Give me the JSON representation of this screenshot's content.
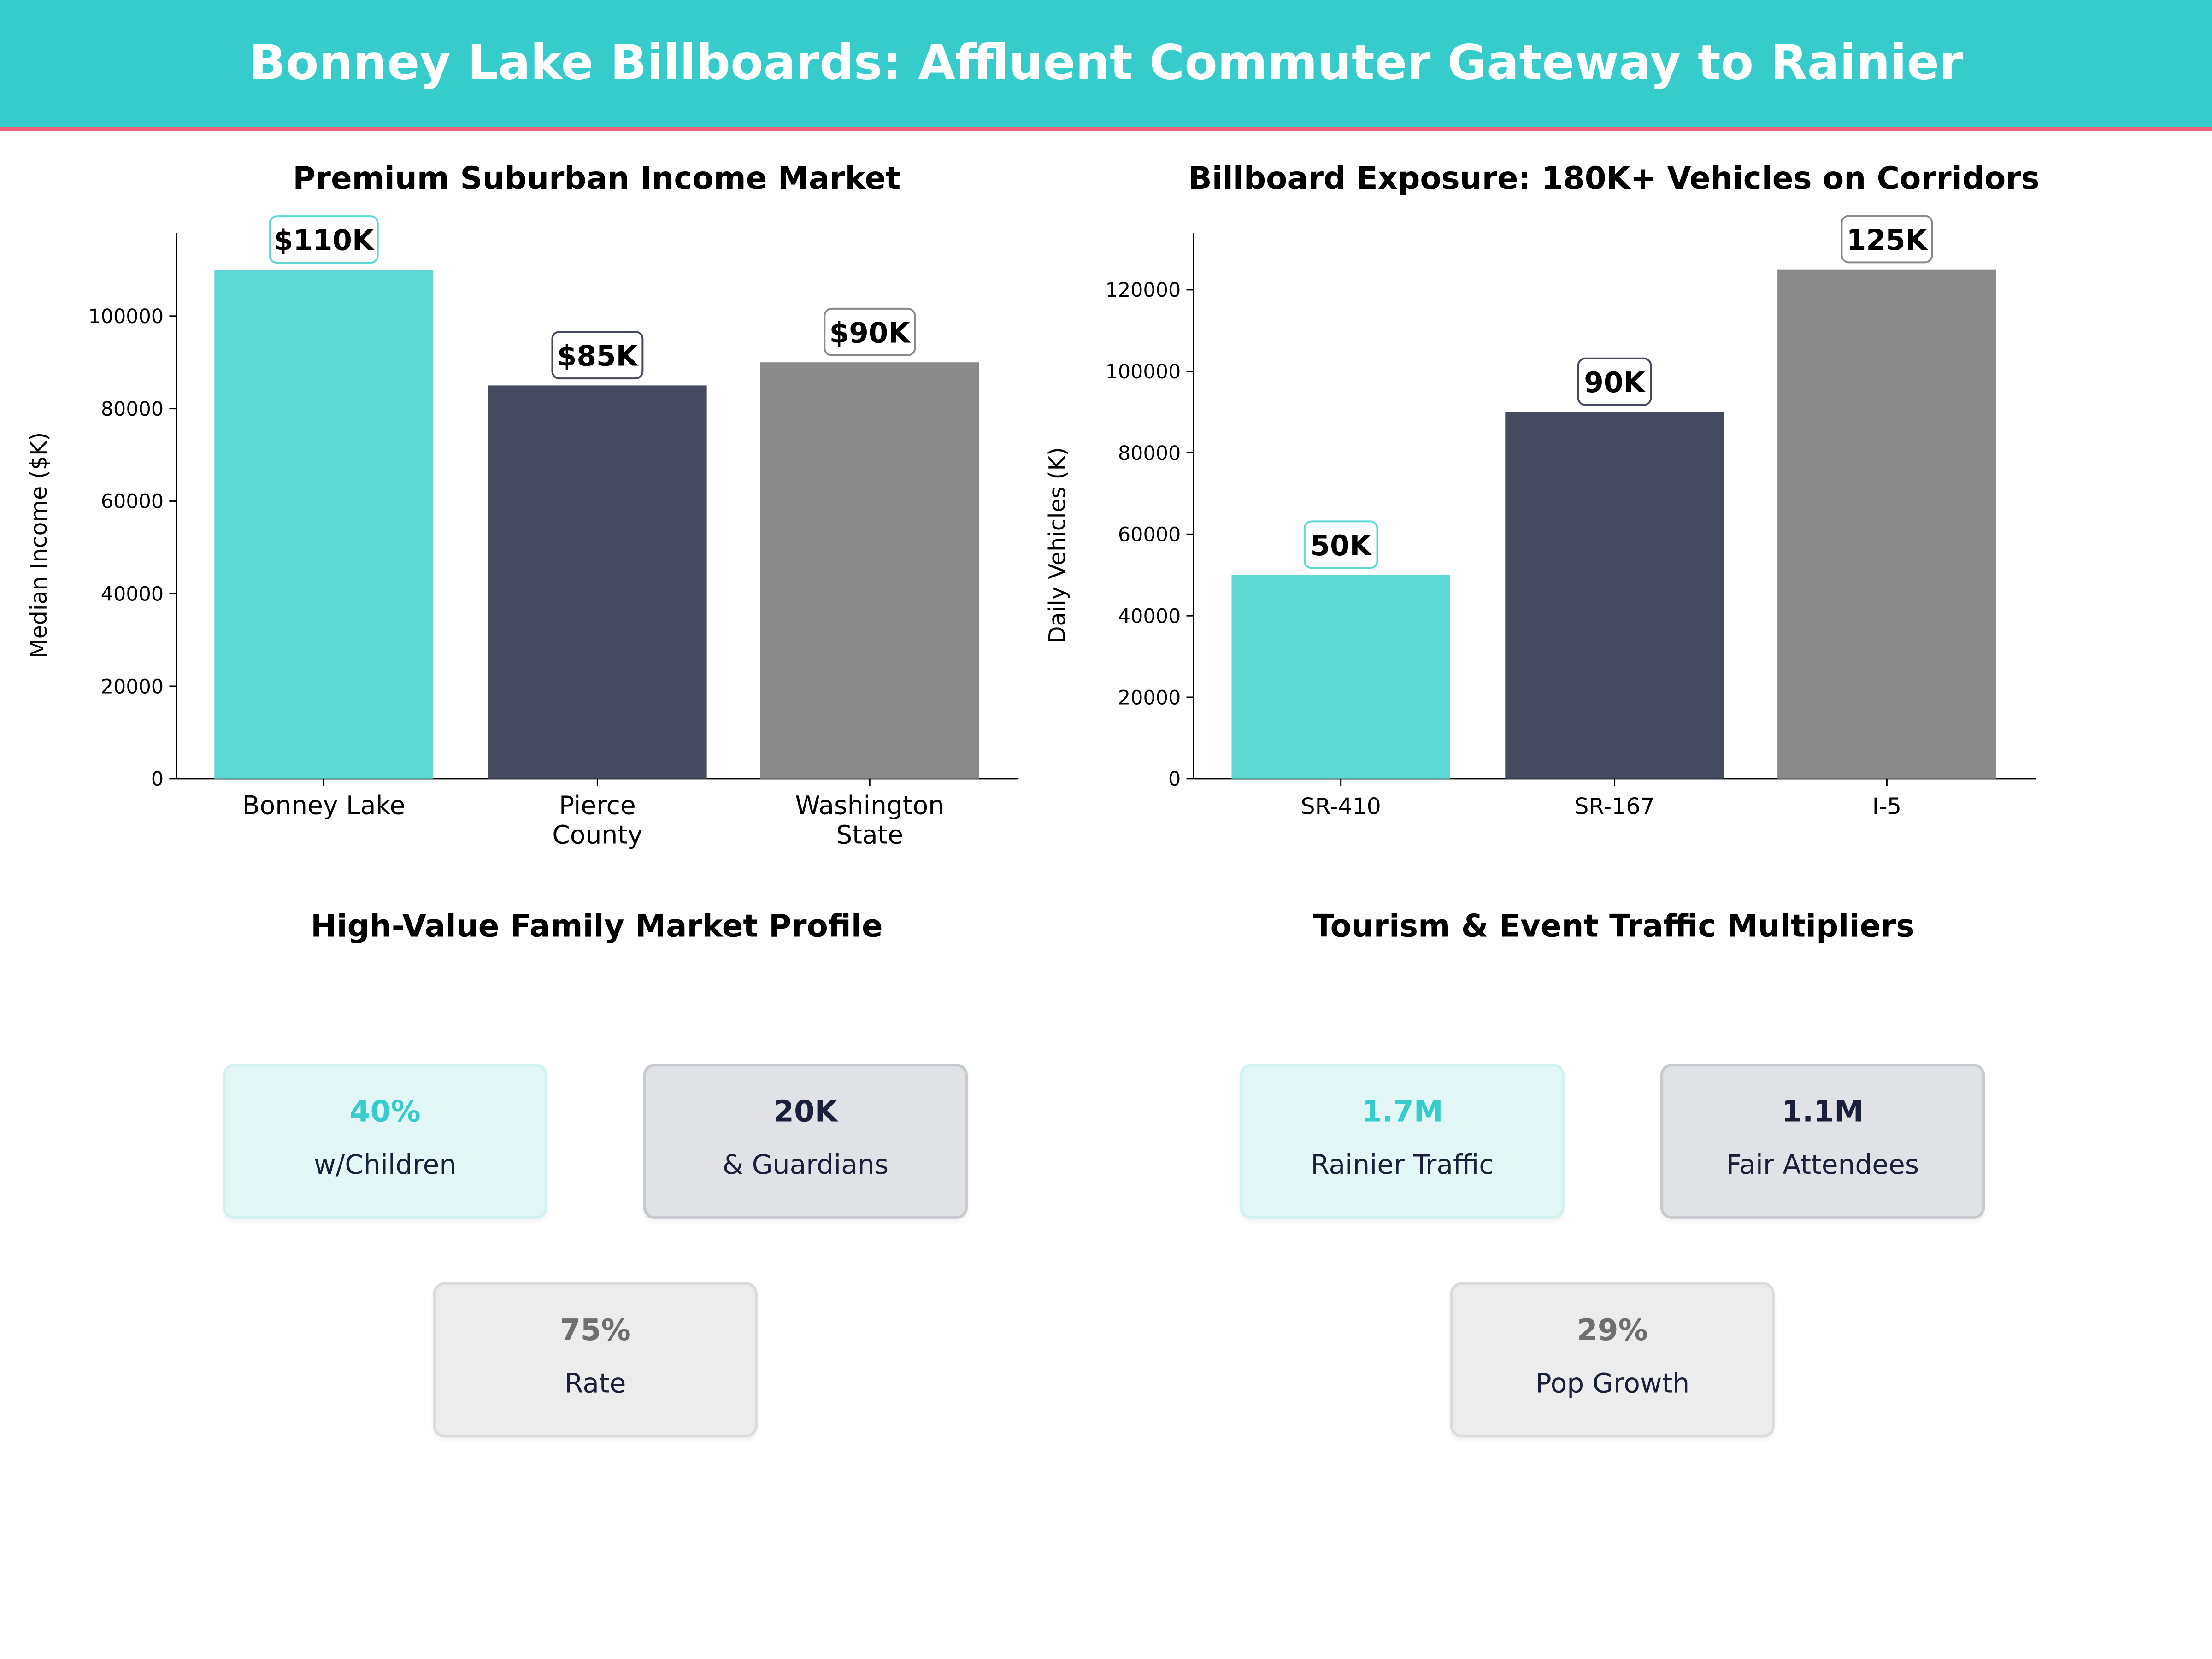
{
  "header": {
    "title": "Bonney Lake Billboards: Affluent Commuter Gateway to Rainier"
  },
  "colors": {
    "teal": "#5dd8d5",
    "navy": "#454a5f",
    "gray": "#8a8a8a",
    "header": "#36cccc",
    "accent_line": "#f0607a"
  },
  "chart_data": [
    {
      "type": "bar",
      "title": "Premium Suburban Income Market",
      "xlabel": "",
      "ylabel": "Median Income ($K)",
      "categories": [
        "Bonney Lake",
        "Pierce\nCounty",
        "Washington\nState"
      ],
      "values": [
        110000,
        85000,
        90000
      ],
      "data_labels": [
        "$110K",
        "$85K",
        "$90K"
      ],
      "ylim": [
        0,
        118000
      ],
      "yticks": [
        0,
        20000,
        40000,
        60000,
        80000,
        100000
      ],
      "grid": false
    },
    {
      "type": "bar",
      "title": "Billboard Exposure: 180K+ Vehicles on Corridors",
      "xlabel": "",
      "ylabel": "Daily Vehicles (K)",
      "categories": [
        "SR-410",
        "SR-167",
        "I-5"
      ],
      "values": [
        50000,
        90000,
        125000
      ],
      "data_labels": [
        "50K",
        "90K",
        "125K"
      ],
      "ylim": [
        0,
        134000
      ],
      "yticks": [
        0,
        20000,
        40000,
        60000,
        80000,
        100000,
        120000
      ],
      "grid": false
    }
  ],
  "family": {
    "title": "High-Value Family Market Profile",
    "cards": [
      {
        "value": "40%",
        "label": "w/Children"
      },
      {
        "value": "20K",
        "label": "& Guardians"
      },
      {
        "value": "75%",
        "label": "Rate"
      }
    ]
  },
  "tourism": {
    "title": "Tourism & Event Traffic Multipliers",
    "cards": [
      {
        "value": "1.7M",
        "label": "Rainier Traffic"
      },
      {
        "value": "1.1M",
        "label": "Fair Attendees"
      },
      {
        "value": "29%",
        "label": "Pop Growth"
      }
    ]
  }
}
